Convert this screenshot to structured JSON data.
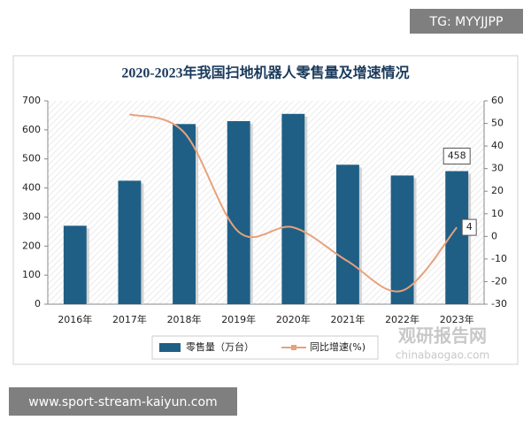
{
  "chart_data": {
    "type": "bar-line",
    "title": "2020-2023年我国扫地机器人零售量及增速情况",
    "categories": [
      "2016年",
      "2017年",
      "2018年",
      "2019年",
      "2020年",
      "2021年",
      "2022年",
      "2023年"
    ],
    "series": [
      {
        "name": "零售量（万台）",
        "color": "#1f5f86",
        "type": "bar",
        "values": [
          270,
          425,
          620,
          630,
          655,
          480,
          443,
          458
        ],
        "value_labels": [
          null,
          null,
          null,
          null,
          null,
          null,
          null,
          "458"
        ]
      },
      {
        "name": "同比增速(%)",
        "color": "#e8a17c",
        "type": "line",
        "axis": "y2",
        "values": [
          null,
          54,
          46,
          2,
          4,
          -11,
          -24,
          4
        ],
        "value_labels": [
          null,
          null,
          null,
          null,
          null,
          null,
          null,
          "4"
        ]
      }
    ],
    "ylim": [
      0,
      700
    ],
    "yticks": [
      0,
      100,
      200,
      300,
      400,
      500,
      600,
      700
    ],
    "y2lim": [
      -30,
      60
    ],
    "y2ticks": [
      -30,
      -20,
      -10,
      0,
      10,
      20,
      30,
      40,
      50,
      60
    ],
    "legend": "bottom"
  },
  "overlay": {
    "tag": "TG: MYYJJPP",
    "site": "www.sport-stream-kaiyun.com",
    "watermark": "观研报告网",
    "watermark_url": "chinabaogao.com"
  }
}
